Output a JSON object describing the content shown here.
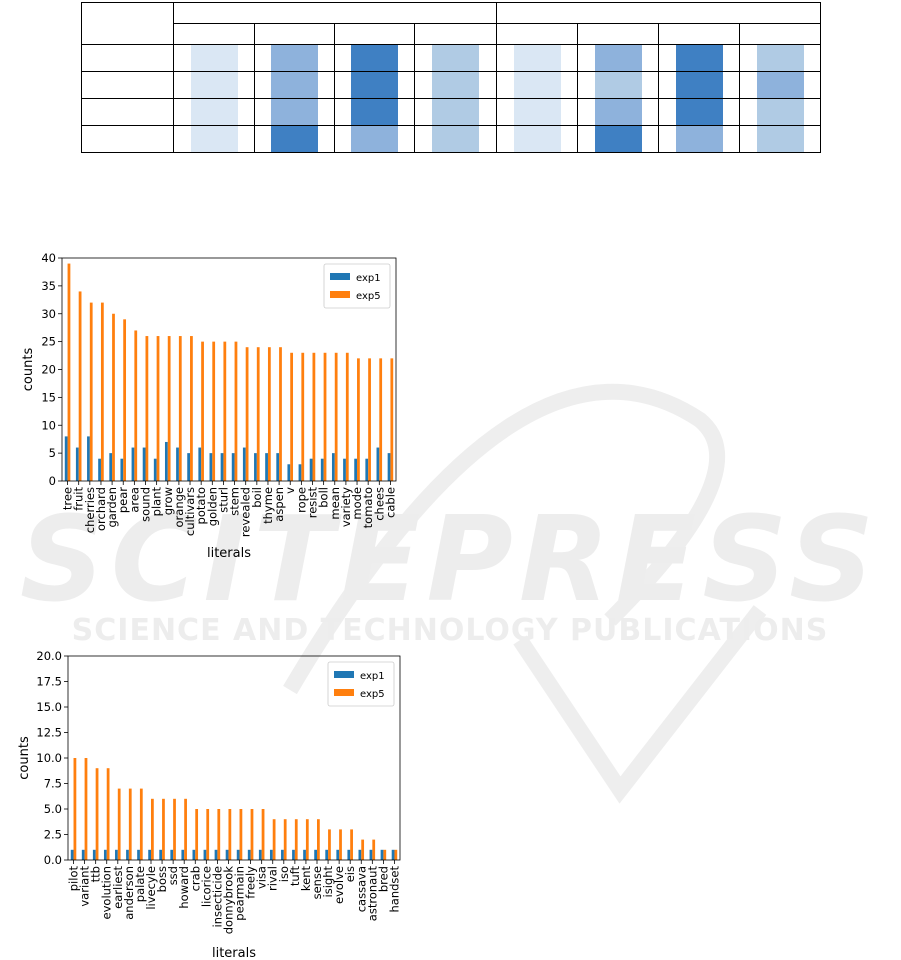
{
  "colors": {
    "exp1": "#1f77b4",
    "exp5": "#ff7f0e",
    "heat_light": "#dae7f4",
    "heat_mid_light": "#b0cbe4",
    "heat_mid": "#8eb2dc",
    "heat_dark": "#3f80c3",
    "watermark": "#efefef"
  },
  "watermark": {
    "line1": "SCITEPRESS",
    "line2": "SCIENCE AND TECHNOLOGY PUBLICATIONS"
  },
  "heat_table": {
    "levels": [
      [
        1,
        2,
        4,
        3,
        1,
        2,
        4,
        3
      ],
      [
        1,
        2,
        4,
        3,
        1,
        3,
        4,
        2
      ],
      [
        1,
        2,
        4,
        3,
        1,
        2,
        4,
        3
      ],
      [
        1,
        4,
        2,
        3,
        1,
        4,
        2,
        3
      ]
    ]
  },
  "chart_data": [
    {
      "type": "bar",
      "xlabel": "literals",
      "ylabel": "counts",
      "ylim": [
        0,
        40
      ],
      "yticks": [
        0,
        5,
        10,
        15,
        20,
        25,
        30,
        35,
        40
      ],
      "legend_position": "top-right",
      "categories": [
        "tree",
        "fruit",
        "cherries",
        "orchard",
        "garden",
        "pear",
        "area",
        "sound",
        "plant",
        "grow",
        "orange",
        "cultivars",
        "potato",
        "golden",
        "sturl",
        "stem",
        "revealed",
        "boil",
        "thyme",
        "aspen",
        "v",
        "rope",
        "resist",
        "boll",
        "mean",
        "variety",
        "mode",
        "tomato",
        "chees",
        "cable"
      ],
      "series": [
        {
          "name": "exp1",
          "values": [
            8,
            6,
            8,
            4,
            5,
            4,
            6,
            6,
            4,
            7,
            6,
            5,
            6,
            5,
            5,
            5,
            6,
            5,
            5,
            5,
            3,
            3,
            4,
            4,
            5,
            4,
            4,
            4,
            6,
            5
          ]
        },
        {
          "name": "exp5",
          "values": [
            39,
            34,
            32,
            32,
            30,
            29,
            27,
            26,
            26,
            26,
            26,
            26,
            25,
            25,
            25,
            25,
            24,
            24,
            24,
            24,
            23,
            23,
            23,
            23,
            23,
            23,
            22,
            22,
            22,
            22
          ]
        }
      ]
    },
    {
      "type": "bar",
      "xlabel": "literals",
      "ylabel": "counts",
      "ylim": [
        0,
        20
      ],
      "yticks": [
        "0.0",
        "2.5",
        "5.0",
        "7.5",
        "10.0",
        "12.5",
        "15.0",
        "17.5",
        "20.0"
      ],
      "legend_position": "top-right",
      "categories": [
        "pilot",
        "variant",
        "ttb",
        "evolution",
        "earliest",
        "anderson",
        "palate",
        "livecyle",
        "boss",
        "ssd",
        "howard",
        "crab",
        "licorice",
        "insecticide",
        "donnybrook",
        "pearmain",
        "freely",
        "visa",
        "rival",
        "iso",
        "tuft",
        "kent",
        "sense",
        "isight",
        "evolve",
        "eis",
        "cassava",
        "astronaut",
        "bred",
        "handset"
      ],
      "series": [
        {
          "name": "exp1",
          "values": [
            1,
            1,
            1,
            1,
            1,
            1,
            1,
            1,
            1,
            1,
            1,
            1,
            1,
            1,
            1,
            1,
            1,
            1,
            1,
            1,
            1,
            1,
            1,
            1,
            1,
            1,
            1,
            1,
            1,
            1
          ]
        },
        {
          "name": "exp5",
          "values": [
            10,
            10,
            9,
            9,
            7,
            7,
            7,
            6,
            6,
            6,
            6,
            5,
            5,
            5,
            5,
            5,
            5,
            5,
            4,
            4,
            4,
            4,
            4,
            3,
            3,
            3,
            2,
            2,
            1,
            1
          ]
        }
      ]
    }
  ]
}
